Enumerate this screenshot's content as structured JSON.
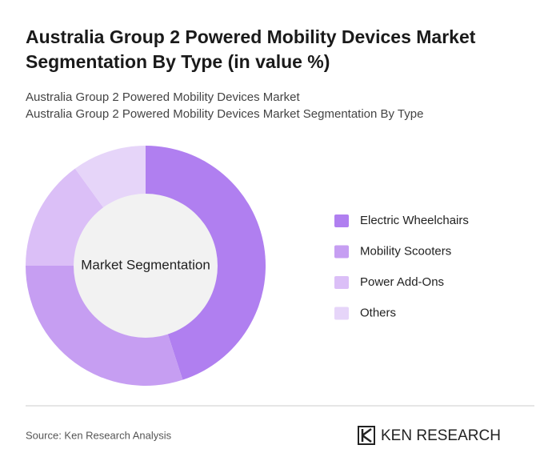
{
  "chart_data": {
    "type": "donut",
    "title": "Australia Group 2 Powered Mobility Devices Market Segmentation By Type (in value %)",
    "subtitle": [
      "Australia Group 2 Powered Mobility Devices Market",
      "Australia Group 2 Powered Mobility Devices Market Segmentation By Type"
    ],
    "center_label": "Market Segmentation",
    "categories": [
      "Electric Wheelchairs",
      "Mobility Scooters",
      "Power Add-Ons",
      "Others"
    ],
    "values": [
      45,
      30,
      15,
      10
    ],
    "colors": [
      "#b07ff0",
      "#c69ef2",
      "#dbbff7",
      "#e6d5f9"
    ]
  },
  "footer": {
    "source": "Source: Ken Research Analysis",
    "logo": "KEN RESEARCH"
  }
}
